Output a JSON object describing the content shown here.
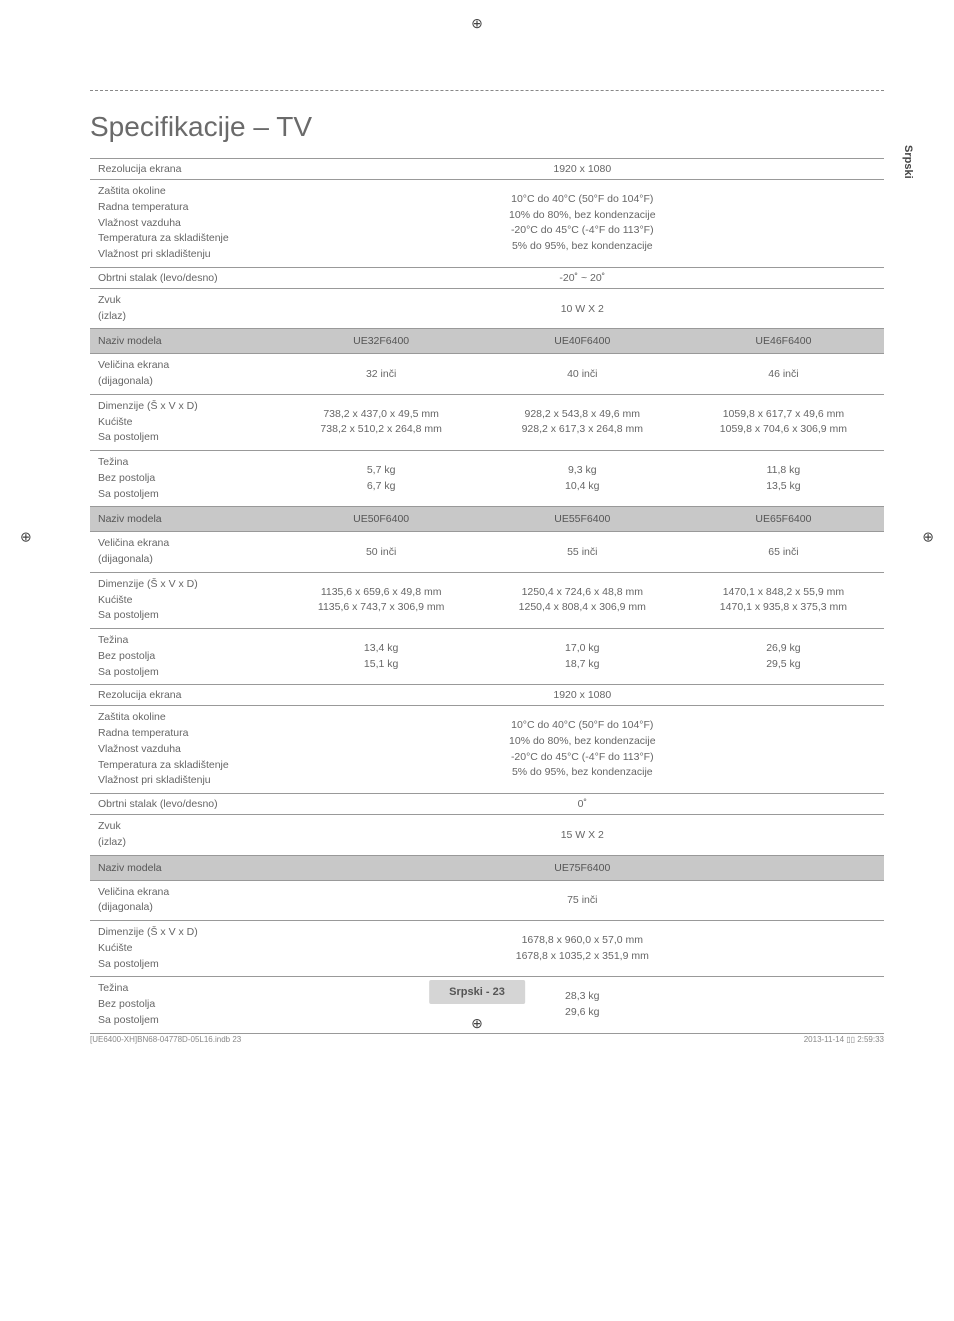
{
  "page": {
    "title": "Specifikacije – TV",
    "side_label": "Srpski",
    "footer": "Srpski - 23",
    "bottom_left": "[UE6400-XH]BN68-04778D-05L16.indb   23",
    "bottom_right": "2013-11-14   ▯▯ 2:59:33"
  },
  "section1": {
    "resolution_label": "Rezolucija ekrana",
    "resolution_value": "1920 x 1080",
    "env_label": "Zaštita okoline\nRadna temperatura\nVlažnost vazduha\nTemperatura za skladištenje\nVlažnost pri skladištenju",
    "env_value": "10°C do 40°C (50°F do 104°F)\n10% do 80%, bez kondenzacije\n-20°C do 45°C (-4°F do 113°F)\n5% do 95%, bez kondenzacije",
    "swivel_label": "Obrtni stalak (levo/desno)",
    "swivel_value": "-20˚ ~ 20˚",
    "sound_label": "Zvuk\n(izlaz)",
    "sound_value": "10 W X 2"
  },
  "models1": {
    "header_label": "Naziv modela",
    "m1": "UE32F6400",
    "m2": "UE40F6400",
    "m3": "UE46F6400",
    "size_label": "Veličina ekrana\n(dijagonala)",
    "s1": "32 inči",
    "s2": "40 inči",
    "s3": "46 inči",
    "dim_label": "Dimenzije (Š x V x D)\nKućište\nSa postoljem",
    "d1": "738,2 x 437,0 x 49,5 mm\n738,2 x 510,2 x 264,8 mm",
    "d2": "928,2 x 543,8 x 49,6 mm\n928,2 x 617,3 x 264,8 mm",
    "d3": "1059,8 x 617,7 x 49,6 mm\n1059,8 x 704,6 x 306,9 mm",
    "weight_label": "Težina\nBez postolja\nSa postoljem",
    "w1": "5,7 kg\n6,7 kg",
    "w2": "9,3 kg\n10,4 kg",
    "w3": "11,8 kg\n13,5 kg"
  },
  "models2": {
    "header_label": "Naziv modela",
    "m1": "UE50F6400",
    "m2": "UE55F6400",
    "m3": "UE65F6400",
    "size_label": "Veličina ekrana\n(dijagonala)",
    "s1": "50 inči",
    "s2": "55 inči",
    "s3": "65 inči",
    "dim_label": "Dimenzije (Š x V x D)\nKućište\nSa postoljem",
    "d1": "1135,6 x 659,6 x 49,8 mm\n1135,6 x 743,7 x 306,9 mm",
    "d2": "1250,4 x 724,6 x 48,8 mm\n1250,4 x 808,4 x 306,9 mm",
    "d3": "1470,1 x 848,2 x 55,9 mm\n1470,1 x 935,8 x 375,3 mm",
    "weight_label": "Težina\nBez postolja\nSa postoljem",
    "w1": "13,4 kg\n15,1 kg",
    "w2": "17,0 kg\n18,7 kg",
    "w3": "26,9 kg\n29,5 kg"
  },
  "section2": {
    "resolution_label": "Rezolucija ekrana",
    "resolution_value": "1920 x 1080",
    "env_label": "Zaštita okoline\nRadna temperatura\nVlažnost vazduha\nTemperatura za skladištenje\nVlažnost pri skladištenju",
    "env_value": "10°C do 40°C (50°F do 104°F)\n10% do 80%, bez kondenzacije\n-20°C do 45°C (-4°F do 113°F)\n5% do 95%, bez kondenzacije",
    "swivel_label": "Obrtni stalak (levo/desno)",
    "swivel_value": "0˚",
    "sound_label": "Zvuk\n(izlaz)",
    "sound_value": "15 W X 2"
  },
  "models3": {
    "header_label": "Naziv modela",
    "m1": "UE75F6400",
    "size_label": "Veličina ekrana\n(dijagonala)",
    "s1": "75 inči",
    "dim_label": "Dimenzije (Š x V x D)\nKućište\nSa postoljem",
    "d1": "1678,8 x 960,0 x 57,0 mm\n1678,8 x 1035,2 x 351,9 mm",
    "weight_label": "Težina\nBez postolja\nSa postoljem",
    "w1": "28,3 kg\n29,6 kg"
  }
}
